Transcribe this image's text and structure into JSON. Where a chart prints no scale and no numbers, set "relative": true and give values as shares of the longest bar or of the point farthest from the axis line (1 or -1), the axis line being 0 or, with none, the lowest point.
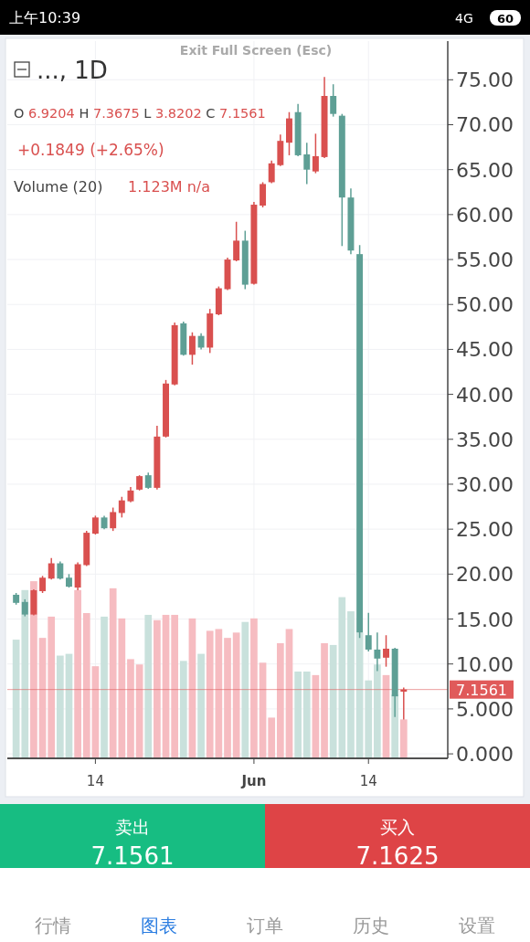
{
  "chart_data": [
    {
      "type": "candlestick",
      "title": "..., 1D",
      "x": [
        "--05-05",
        "--05-06",
        "--05-07",
        "--05-08",
        "--05-09",
        "--05-10",
        "--05-11",
        "--05-12",
        "--05-13",
        "--05-14",
        "--05-15",
        "--05-16",
        "--05-17",
        "--05-18",
        "--05-19",
        "--05-20",
        "--05-21",
        "--05-22",
        "--05-23",
        "--05-24",
        "--05-25",
        "--05-26",
        "--05-27",
        "--05-28",
        "--05-29",
        "--05-30",
        "--05-31",
        "--06-01",
        "--06-02",
        "--06-03",
        "--06-04",
        "--06-05",
        "--06-06",
        "--06-07",
        "--06-08",
        "--06-09",
        "--06-10",
        "--06-11",
        "--06-12",
        "--06-13",
        "--06-14",
        "--06-15",
        "--06-16",
        "--06-17",
        "--06-18"
      ],
      "ohlc": [
        [
          17.7,
          17.9,
          16.6,
          16.8
        ],
        [
          16.9,
          17.2,
          15.3,
          15.5
        ],
        [
          15.5,
          18.3,
          15.4,
          18.2
        ],
        [
          18.1,
          19.8,
          17.9,
          19.6
        ],
        [
          19.5,
          21.8,
          19.4,
          21.2
        ],
        [
          21.2,
          21.4,
          19.4,
          19.5
        ],
        [
          19.6,
          20.0,
          18.5,
          18.6
        ],
        [
          18.5,
          21.3,
          18.2,
          21.1
        ],
        [
          21.0,
          24.8,
          20.9,
          24.6
        ],
        [
          24.5,
          26.5,
          24.4,
          26.3
        ],
        [
          26.3,
          26.5,
          25.0,
          25.1
        ],
        [
          25.1,
          27.4,
          24.8,
          26.9
        ],
        [
          26.8,
          28.6,
          26.3,
          28.2
        ],
        [
          28.1,
          29.7,
          28.0,
          29.3
        ],
        [
          29.4,
          31.0,
          29.3,
          30.9
        ],
        [
          31.0,
          31.3,
          29.5,
          29.6
        ],
        [
          29.6,
          36.5,
          29.4,
          35.3
        ],
        [
          35.3,
          41.6,
          35.2,
          41.2
        ],
        [
          41.1,
          48.0,
          41.0,
          47.7
        ],
        [
          47.9,
          48.1,
          44.3,
          44.4
        ],
        [
          44.4,
          46.9,
          43.3,
          46.5
        ],
        [
          46.5,
          46.8,
          45.0,
          45.2
        ],
        [
          45.2,
          49.5,
          44.6,
          49.0
        ],
        [
          48.9,
          52.0,
          48.8,
          51.8
        ],
        [
          51.7,
          55.2,
          51.6,
          55.0
        ],
        [
          54.9,
          59.2,
          54.8,
          57.1
        ],
        [
          57.1,
          58.2,
          51.7,
          52.2
        ],
        [
          52.3,
          61.4,
          52.2,
          61.1
        ],
        [
          61.0,
          63.6,
          60.8,
          63.4
        ],
        [
          63.6,
          66.0,
          63.5,
          65.7
        ],
        [
          65.5,
          68.9,
          65.4,
          68.2
        ],
        [
          68.0,
          71.4,
          66.6,
          70.7
        ],
        [
          71.4,
          72.3,
          66.5,
          66.6
        ],
        [
          66.7,
          68.0,
          63.4,
          65.0
        ],
        [
          64.8,
          69.0,
          64.6,
          66.5
        ],
        [
          66.4,
          75.3,
          66.3,
          73.2
        ],
        [
          73.2,
          74.5,
          70.9,
          71.2
        ],
        [
          71.0,
          71.2,
          56.5,
          61.9
        ],
        [
          61.9,
          62.9,
          55.6,
          56.0
        ],
        [
          55.6,
          56.6,
          12.9,
          13.5
        ],
        [
          13.2,
          15.7,
          11.4,
          11.6
        ],
        [
          11.6,
          13.5,
          9.2,
          10.6
        ],
        [
          10.7,
          13.2,
          9.7,
          11.7
        ],
        [
          11.7,
          11.8,
          4.1,
          6.4
        ],
        [
          6.9204,
          7.3675,
          3.8202,
          7.1561
        ]
      ],
      "colors": [
        "#5e9f95",
        "#5e9f95",
        "#d9504f",
        "#d9504f",
        "#d9504f",
        "#5e9f95",
        "#5e9f95",
        "#d9504f",
        "#d9504f",
        "#d9504f",
        "#5e9f95",
        "#d9504f",
        "#d9504f",
        "#d9504f",
        "#d9504f",
        "#5e9f95",
        "#d9504f",
        "#d9504f",
        "#d9504f",
        "#5e9f95",
        "#d9504f",
        "#5e9f95",
        "#d9504f",
        "#d9504f",
        "#d9504f",
        "#d9504f",
        "#5e9f95",
        "#d9504f",
        "#d9504f",
        "#d9504f",
        "#d9504f",
        "#d9504f",
        "#5e9f95",
        "#5e9f95",
        "#d9504f",
        "#d9504f",
        "#5e9f95",
        "#5e9f95",
        "#5e9f95",
        "#5e9f95",
        "#5e9f95",
        "#5e9f95",
        "#d9504f",
        "#5e9f95",
        "#d9504f"
      ],
      "xlim": [
        "--05-04",
        "--06-23"
      ],
      "xticks": [
        {
          "value": "--05-14",
          "label": "14"
        },
        {
          "value": "--06-01",
          "label": "Jun"
        },
        {
          "value": "--06-14",
          "label": "14"
        }
      ],
      "ylim": [
        -0.5,
        79.3
      ],
      "yticks": [
        {
          "value": 0,
          "label": "0.000"
        },
        {
          "value": 5,
          "label": "5.000"
        },
        {
          "value": 10,
          "label": "10.00"
        },
        {
          "value": 15,
          "label": "15.00"
        },
        {
          "value": 20,
          "label": "20.00"
        },
        {
          "value": 25,
          "label": "25.00"
        },
        {
          "value": 30,
          "label": "30.00"
        },
        {
          "value": 35,
          "label": "35.00"
        },
        {
          "value": 40,
          "label": "40.00"
        },
        {
          "value": 45,
          "label": "45.00"
        },
        {
          "value": 50,
          "label": "50.00"
        },
        {
          "value": 55,
          "label": "55.00"
        },
        {
          "value": 60,
          "label": "60.00"
        },
        {
          "value": 65,
          "label": "65.00"
        },
        {
          "value": 70,
          "label": "70.00"
        },
        {
          "value": 75,
          "label": "75.00"
        }
      ],
      "grid": true,
      "ref_lines": [
        {
          "axis": "y",
          "value": 7.1561,
          "label": "7.1561",
          "color": "#e05a5a"
        }
      ],
      "annotations": [
        "上午10:39",
        "4G",
        "60",
        "O 6.9204 H 7.3675 L 3.8202 C 7.1561",
        "+0.1849 (+2.65%)",
        "Volume (20)",
        "1.123M n/a",
        "卖出",
        "7.1561",
        "买入",
        "7.1625",
        "行情",
        "图表",
        "订单",
        "历史",
        "设置",
        "Exit Full Screen (Esc)"
      ]
    },
    {
      "type": "bar",
      "relative": true,
      "x": [
        "--05-05",
        "--05-06",
        "--05-07",
        "--05-08",
        "--05-09",
        "--05-10",
        "--05-11",
        "--05-12",
        "--05-13",
        "--05-14",
        "--05-15",
        "--05-16",
        "--05-17",
        "--05-18",
        "--05-19",
        "--05-20",
        "--05-21",
        "--05-22",
        "--05-23",
        "--05-24",
        "--05-25",
        "--05-26",
        "--05-27",
        "--05-28",
        "--05-29",
        "--05-30",
        "--05-31",
        "--06-01",
        "--06-02",
        "--06-03",
        "--06-04",
        "--06-05",
        "--06-06",
        "--06-07",
        "--06-08",
        "--06-09",
        "--06-10",
        "--06-11",
        "--06-12",
        "--06-13",
        "--06-14",
        "--06-15",
        "--06-16",
        "--06-17",
        "--06-18"
      ],
      "xlim": [
        "--05-04",
        "--06-23"
      ],
      "values": [
        0.67,
        0.95,
        1,
        0.68,
        0.8,
        0.58,
        0.59,
        0.95,
        0.82,
        0.52,
        0.8,
        0.96,
        0.79,
        0.56,
        0.53,
        0.81,
        0.78,
        0.81,
        0.81,
        0.55,
        0.79,
        0.59,
        0.72,
        0.73,
        0.68,
        0.71,
        0.77,
        0.79,
        0.54,
        0.23,
        0.65,
        0.73,
        0.49,
        0.49,
        0.47,
        0.65,
        0.64,
        0.91,
        0.83,
        0.71,
        0.44,
        0.53,
        0.47,
        0.36,
        0.22
      ],
      "colors": [
        "#c9e1dc",
        "#c9e1dc",
        "#f6bcc1",
        "#f6bcc1",
        "#f6bcc1",
        "#c9e1dc",
        "#c9e1dc",
        "#f6bcc1",
        "#f6bcc1",
        "#f6bcc1",
        "#c9e1dc",
        "#f6bcc1",
        "#f6bcc1",
        "#f6bcc1",
        "#f6bcc1",
        "#c9e1dc",
        "#f6bcc1",
        "#f6bcc1",
        "#f6bcc1",
        "#c9e1dc",
        "#f6bcc1",
        "#c9e1dc",
        "#f6bcc1",
        "#f6bcc1",
        "#f6bcc1",
        "#f6bcc1",
        "#c9e1dc",
        "#f6bcc1",
        "#f6bcc1",
        "#f6bcc1",
        "#f6bcc1",
        "#f6bcc1",
        "#c9e1dc",
        "#c9e1dc",
        "#f6bcc1",
        "#f6bcc1",
        "#c9e1dc",
        "#c9e1dc",
        "#c9e1dc",
        "#c9e1dc",
        "#c9e1dc",
        "#c9e1dc",
        "#f6bcc1",
        "#c9e1dc",
        "#f6bcc1"
      ]
    }
  ]
}
